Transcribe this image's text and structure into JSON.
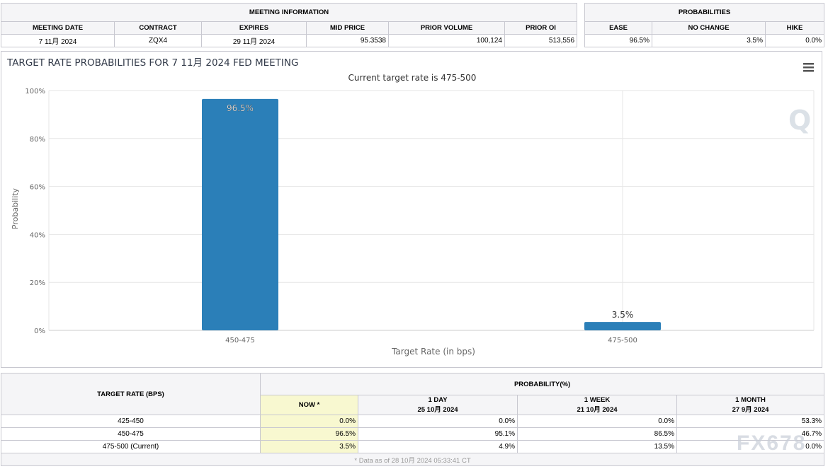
{
  "meeting_info": {
    "title": "MEETING INFORMATION",
    "headers": [
      "MEETING DATE",
      "CONTRACT",
      "EXPIRES",
      "MID PRICE",
      "PRIOR VOLUME",
      "PRIOR OI"
    ],
    "values": [
      "7 11月 2024",
      "ZQX4",
      "29 11月 2024",
      "95.3538",
      "100,124",
      "513,556"
    ]
  },
  "probabilities": {
    "title": "PROBABILITIES",
    "headers": [
      "EASE",
      "NO CHANGE",
      "HIKE"
    ],
    "values": [
      "96.5%",
      "3.5%",
      "0.0%"
    ]
  },
  "chart_data": {
    "type": "bar",
    "title": "TARGET RATE PROBABILITIES FOR 7 11月 2024 FED MEETING",
    "subtitle": "Current target rate is 475-500",
    "categories": [
      "450-475",
      "475-500"
    ],
    "values": [
      96.5,
      3.5
    ],
    "data_labels": [
      "96.5%",
      "3.5%"
    ],
    "xlabel": "Target Rate (in bps)",
    "ylabel": "Probability",
    "ylim": [
      0,
      100
    ],
    "yticks": [
      "0%",
      "20%",
      "40%",
      "60%",
      "80%",
      "100%"
    ],
    "grid": true,
    "color": "#2b7fb8",
    "menu_icon": "hamburger-menu-icon"
  },
  "prob_table": {
    "rate_header": "TARGET RATE (BPS)",
    "prob_header": "PROBABILITY(%)",
    "columns": [
      {
        "label": "NOW *",
        "date": ""
      },
      {
        "label": "1 DAY",
        "date": "25 10月 2024"
      },
      {
        "label": "1 WEEK",
        "date": "21 10月 2024"
      },
      {
        "label": "1 MONTH",
        "date": "27 9月 2024"
      }
    ],
    "rows": [
      {
        "rate": "425-450",
        "values": [
          "0.0%",
          "0.0%",
          "0.0%",
          "53.3%"
        ]
      },
      {
        "rate": "450-475",
        "values": [
          "96.5%",
          "95.1%",
          "86.5%",
          "46.7%"
        ]
      },
      {
        "rate": "475-500 (Current)",
        "values": [
          "3.5%",
          "4.9%",
          "13.5%",
          "0.0%"
        ]
      }
    ],
    "footer": "* Data as of 28 10月 2024 05:33:41 CT"
  },
  "watermark": "FX678"
}
